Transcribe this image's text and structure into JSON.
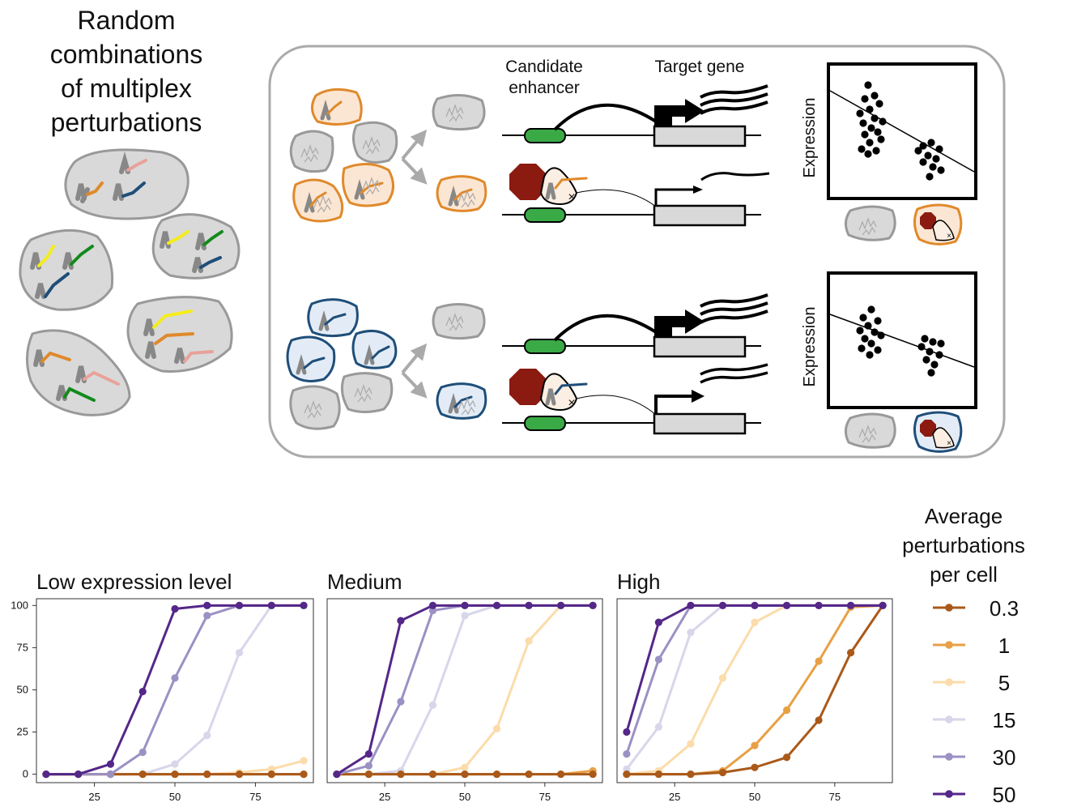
{
  "left_title": [
    "Random",
    "combinations",
    "of multiplex",
    "perturbations"
  ],
  "diagram": {
    "candidate_enhancer": [
      "Candidate",
      "enhancer"
    ],
    "target_gene": "Target gene",
    "expression_label": "Expression",
    "colors": {
      "orange": "#e0892b",
      "blue": "#1f4e79",
      "enhancer": "#3aaa47",
      "stop": "#8b1a10",
      "cell": "#d9d9d9"
    }
  },
  "legend": {
    "title": [
      "Average",
      "perturbations",
      "per cell"
    ],
    "items": [
      {
        "label": "0.3",
        "color": "#a9591a"
      },
      {
        "label": "1",
        "color": "#e8a045"
      },
      {
        "label": "5",
        "color": "#fbdcaa"
      },
      {
        "label": "15",
        "color": "#d7d6ea"
      },
      {
        "label": "30",
        "color": "#9b91c4"
      },
      {
        "label": "50",
        "color": "#542788"
      }
    ]
  },
  "chart_data": [
    {
      "type": "line",
      "title": "Low expression level",
      "x": [
        10,
        20,
        30,
        40,
        50,
        60,
        70,
        80,
        90
      ],
      "xticks": [
        "25",
        "50",
        "75"
      ],
      "yticks": [
        "0",
        "25",
        "50",
        "75",
        "100"
      ],
      "ylim": [
        0,
        100
      ],
      "series": [
        {
          "name": "0.3",
          "values": [
            0,
            0,
            0,
            0,
            0,
            0,
            0,
            0,
            0
          ]
        },
        {
          "name": "1",
          "values": [
            0,
            0,
            0,
            0,
            0,
            0,
            0,
            0,
            0
          ]
        },
        {
          "name": "5",
          "values": [
            0,
            0,
            0,
            0,
            0,
            0,
            1,
            3,
            8
          ]
        },
        {
          "name": "15",
          "values": [
            0,
            0,
            0,
            0,
            6,
            23,
            72,
            100,
            100
          ]
        },
        {
          "name": "30",
          "values": [
            0,
            0,
            0,
            13,
            57,
            94,
            100,
            100,
            100
          ]
        },
        {
          "name": "50",
          "values": [
            0,
            0,
            6,
            49,
            98,
            100,
            100,
            100,
            100
          ]
        }
      ]
    },
    {
      "type": "line",
      "title": "Medium",
      "x": [
        10,
        20,
        30,
        40,
        50,
        60,
        70,
        80,
        90
      ],
      "xticks": [
        "25",
        "50",
        "75"
      ],
      "ylim": [
        0,
        100
      ],
      "series": [
        {
          "name": "0.3",
          "values": [
            0,
            0,
            0,
            0,
            0,
            0,
            0,
            0,
            0
          ]
        },
        {
          "name": "1",
          "values": [
            0,
            0,
            0,
            0,
            0,
            0,
            0,
            0,
            2
          ]
        },
        {
          "name": "5",
          "values": [
            0,
            0,
            0,
            0,
            4,
            27,
            79,
            100,
            100
          ]
        },
        {
          "name": "15",
          "values": [
            0,
            0,
            2,
            41,
            94,
            100,
            100,
            100,
            100
          ]
        },
        {
          "name": "30",
          "values": [
            0,
            5,
            43,
            97,
            100,
            100,
            100,
            100,
            100
          ]
        },
        {
          "name": "50",
          "values": [
            0,
            12,
            91,
            100,
            100,
            100,
            100,
            100,
            100
          ]
        }
      ]
    },
    {
      "type": "line",
      "title": "High",
      "x": [
        10,
        20,
        30,
        40,
        50,
        60,
        70,
        80,
        90
      ],
      "xticks": [
        "25",
        "50",
        "75"
      ],
      "ylim": [
        0,
        100
      ],
      "series": [
        {
          "name": "0.3",
          "values": [
            0,
            0,
            0,
            1,
            4,
            10,
            32,
            72,
            100
          ]
        },
        {
          "name": "1",
          "values": [
            0,
            0,
            0,
            2,
            17,
            38,
            67,
            99,
            100
          ]
        },
        {
          "name": "5",
          "values": [
            0,
            2,
            18,
            57,
            90,
            100,
            100,
            100,
            100
          ]
        },
        {
          "name": "15",
          "values": [
            3,
            28,
            84,
            100,
            100,
            100,
            100,
            100,
            100
          ]
        },
        {
          "name": "30",
          "values": [
            12,
            68,
            100,
            100,
            100,
            100,
            100,
            100,
            100
          ]
        },
        {
          "name": "50",
          "values": [
            25,
            90,
            100,
            100,
            100,
            100,
            100,
            100,
            100
          ]
        }
      ]
    }
  ]
}
